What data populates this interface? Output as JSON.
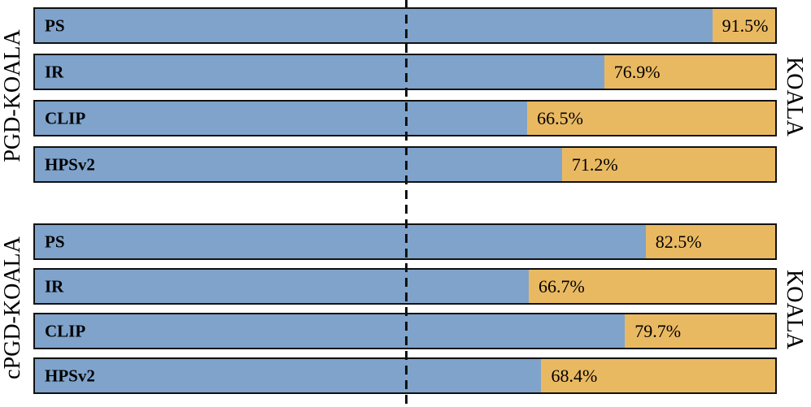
{
  "chart_data": {
    "type": "bar",
    "orientation": "horizontal-stacked",
    "title": "",
    "xlabel": "",
    "ylabel": "",
    "xlim": [
      0,
      100
    ],
    "value_suffix": "%",
    "legend_position": "none",
    "grid": false,
    "reference_line": {
      "x": 50,
      "style": "dashed",
      "color": "#111111"
    },
    "colors": {
      "left_segment": "#7fa3cb",
      "right_segment": "#e9b962",
      "border": "#111111"
    },
    "groups": [
      {
        "left_label": "PGD-KOALA",
        "right_label": "KOALA",
        "categories": [
          "PS",
          "IR",
          "CLIP",
          "HPSv2"
        ],
        "bars": [
          {
            "metric": "PS",
            "value": 91.5
          },
          {
            "metric": "IR",
            "value": 76.9
          },
          {
            "metric": "CLIP",
            "value": 66.5
          },
          {
            "metric": "HPSv2",
            "value": 71.2
          }
        ]
      },
      {
        "left_label": "cPGD-KOALA",
        "right_label": "KOALA",
        "categories": [
          "PS",
          "IR",
          "CLIP",
          "HPSv2"
        ],
        "bars": [
          {
            "metric": "PS",
            "value": 82.5
          },
          {
            "metric": "IR",
            "value": 66.7
          },
          {
            "metric": "CLIP",
            "value": 79.7
          },
          {
            "metric": "HPSv2",
            "value": 68.4
          }
        ]
      }
    ]
  }
}
